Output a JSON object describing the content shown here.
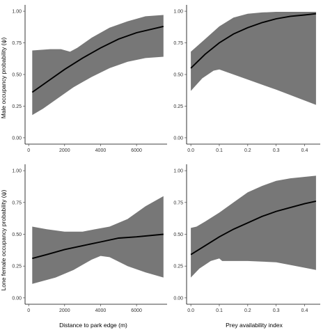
{
  "figure": {
    "ylabels": [
      "Male occupancy probability (ψ)",
      "Lone female occupancy probability (ψ)"
    ],
    "xlabels": [
      "Distance to park edge (m)",
      "Prey availability index"
    ]
  },
  "chart_data": [
    {
      "type": "line",
      "row": 0,
      "col": 0,
      "xlim": [
        -200,
        7700
      ],
      "ylim": [
        -0.05,
        1.05
      ],
      "xticks": [
        0,
        2000,
        4000,
        6000
      ],
      "yticks": [
        0.0,
        0.25,
        0.5,
        0.75,
        1.0
      ],
      "xtick_labels": [
        "0",
        "2000",
        "4000",
        "6000"
      ],
      "ytick_labels": [
        "0.00",
        "0.25",
        "0.50",
        "0.75",
        "1.00"
      ],
      "series": [
        {
          "x": [
            200,
            1000,
            2000,
            3000,
            4000,
            5000,
            6000,
            7500
          ],
          "y": [
            0.36,
            0.44,
            0.54,
            0.63,
            0.71,
            0.78,
            0.83,
            0.88
          ]
        }
      ],
      "band_upper": [
        {
          "x": 200,
          "y": 0.69
        },
        {
          "x": 1200,
          "y": 0.7
        },
        {
          "x": 1800,
          "y": 0.7
        },
        {
          "x": 2300,
          "y": 0.68
        },
        {
          "x": 2700,
          "y": 0.71
        },
        {
          "x": 3500,
          "y": 0.79
        },
        {
          "x": 4500,
          "y": 0.87
        },
        {
          "x": 5500,
          "y": 0.92
        },
        {
          "x": 6500,
          "y": 0.96
        },
        {
          "x": 7500,
          "y": 0.97
        }
      ],
      "band_lower": [
        {
          "x": 200,
          "y": 0.18
        },
        {
          "x": 800,
          "y": 0.23
        },
        {
          "x": 1500,
          "y": 0.3
        },
        {
          "x": 2500,
          "y": 0.4
        },
        {
          "x": 3000,
          "y": 0.44
        },
        {
          "x": 3500,
          "y": 0.48
        },
        {
          "x": 4500,
          "y": 0.55
        },
        {
          "x": 5500,
          "y": 0.6
        },
        {
          "x": 6500,
          "y": 0.63
        },
        {
          "x": 7500,
          "y": 0.64
        }
      ]
    },
    {
      "type": "line",
      "row": 0,
      "col": 1,
      "xlim": [
        -0.015,
        0.455
      ],
      "ylim": [
        -0.05,
        1.05
      ],
      "xticks": [
        0.0,
        0.1,
        0.2,
        0.3,
        0.4
      ],
      "yticks": [
        0.0,
        0.25,
        0.5,
        0.75,
        1.0
      ],
      "xtick_labels": [
        "0.0",
        "0.1",
        "0.2",
        "0.3",
        "0.4"
      ],
      "ytick_labels": [
        "0.00",
        "0.25",
        "0.50",
        "0.75",
        "1.00"
      ],
      "series": [
        {
          "x": [
            0.0,
            0.05,
            0.1,
            0.15,
            0.2,
            0.25,
            0.3,
            0.35,
            0.4,
            0.44
          ],
          "y": [
            0.55,
            0.66,
            0.75,
            0.82,
            0.87,
            0.91,
            0.94,
            0.96,
            0.97,
            0.98
          ]
        }
      ],
      "band_upper": [
        {
          "x": 0.0,
          "y": 0.68
        },
        {
          "x": 0.05,
          "y": 0.78
        },
        {
          "x": 0.1,
          "y": 0.88
        },
        {
          "x": 0.15,
          "y": 0.95
        },
        {
          "x": 0.2,
          "y": 0.98
        },
        {
          "x": 0.25,
          "y": 0.99
        },
        {
          "x": 0.3,
          "y": 0.995
        },
        {
          "x": 0.44,
          "y": 0.995
        }
      ],
      "band_lower": [
        {
          "x": 0.0,
          "y": 0.37
        },
        {
          "x": 0.04,
          "y": 0.47
        },
        {
          "x": 0.08,
          "y": 0.53
        },
        {
          "x": 0.1,
          "y": 0.54
        },
        {
          "x": 0.15,
          "y": 0.5
        },
        {
          "x": 0.2,
          "y": 0.46
        },
        {
          "x": 0.3,
          "y": 0.38
        },
        {
          "x": 0.44,
          "y": 0.26
        }
      ]
    },
    {
      "type": "line",
      "row": 1,
      "col": 0,
      "xlim": [
        -200,
        7700
      ],
      "ylim": [
        -0.05,
        1.05
      ],
      "xticks": [
        0,
        2000,
        4000,
        6000
      ],
      "yticks": [
        0.0,
        0.25,
        0.5,
        0.75,
        1.0
      ],
      "xtick_labels": [
        "0",
        "2000",
        "4000",
        "6000"
      ],
      "ytick_labels": [
        "0.00",
        "0.25",
        "0.50",
        "0.75",
        "1.00"
      ],
      "series": [
        {
          "x": [
            200,
            1000,
            2000,
            3000,
            4000,
            5000,
            6000,
            7500
          ],
          "y": [
            0.31,
            0.34,
            0.38,
            0.41,
            0.44,
            0.47,
            0.48,
            0.5
          ]
        }
      ],
      "band_upper": [
        {
          "x": 200,
          "y": 0.56
        },
        {
          "x": 1000,
          "y": 0.54
        },
        {
          "x": 2000,
          "y": 0.52
        },
        {
          "x": 3000,
          "y": 0.52
        },
        {
          "x": 3700,
          "y": 0.54
        },
        {
          "x": 4500,
          "y": 0.56
        },
        {
          "x": 5500,
          "y": 0.62
        },
        {
          "x": 6500,
          "y": 0.72
        },
        {
          "x": 7500,
          "y": 0.8
        }
      ],
      "band_lower": [
        {
          "x": 200,
          "y": 0.11
        },
        {
          "x": 1500,
          "y": 0.16
        },
        {
          "x": 2500,
          "y": 0.22
        },
        {
          "x": 3500,
          "y": 0.3
        },
        {
          "x": 4000,
          "y": 0.33
        },
        {
          "x": 4500,
          "y": 0.32
        },
        {
          "x": 5500,
          "y": 0.25
        },
        {
          "x": 6500,
          "y": 0.2
        },
        {
          "x": 7500,
          "y": 0.16
        }
      ]
    },
    {
      "type": "line",
      "row": 1,
      "col": 1,
      "xlim": [
        -0.015,
        0.455
      ],
      "ylim": [
        -0.05,
        1.05
      ],
      "xticks": [
        0.0,
        0.1,
        0.2,
        0.3,
        0.4
      ],
      "yticks": [
        0.0,
        0.25,
        0.5,
        0.75,
        1.0
      ],
      "xtick_labels": [
        "0.0",
        "0.1",
        "0.2",
        "0.3",
        "0.4"
      ],
      "ytick_labels": [
        "0.00",
        "0.25",
        "0.50",
        "0.75",
        "1.00"
      ],
      "series": [
        {
          "x": [
            0.0,
            0.05,
            0.1,
            0.15,
            0.2,
            0.25,
            0.3,
            0.35,
            0.4,
            0.44
          ],
          "y": [
            0.34,
            0.41,
            0.48,
            0.54,
            0.59,
            0.64,
            0.68,
            0.71,
            0.74,
            0.76
          ]
        }
      ],
      "band_upper": [
        {
          "x": 0.0,
          "y": 0.55
        },
        {
          "x": 0.02,
          "y": 0.56
        },
        {
          "x": 0.05,
          "y": 0.6
        },
        {
          "x": 0.1,
          "y": 0.67
        },
        {
          "x": 0.15,
          "y": 0.75
        },
        {
          "x": 0.2,
          "y": 0.83
        },
        {
          "x": 0.25,
          "y": 0.88
        },
        {
          "x": 0.3,
          "y": 0.92
        },
        {
          "x": 0.35,
          "y": 0.94
        },
        {
          "x": 0.44,
          "y": 0.96
        }
      ],
      "band_lower": [
        {
          "x": 0.0,
          "y": 0.16
        },
        {
          "x": 0.03,
          "y": 0.23
        },
        {
          "x": 0.07,
          "y": 0.29
        },
        {
          "x": 0.1,
          "y": 0.31
        },
        {
          "x": 0.11,
          "y": 0.29
        },
        {
          "x": 0.2,
          "y": 0.29
        },
        {
          "x": 0.3,
          "y": 0.28
        },
        {
          "x": 0.44,
          "y": 0.22
        }
      ]
    }
  ]
}
